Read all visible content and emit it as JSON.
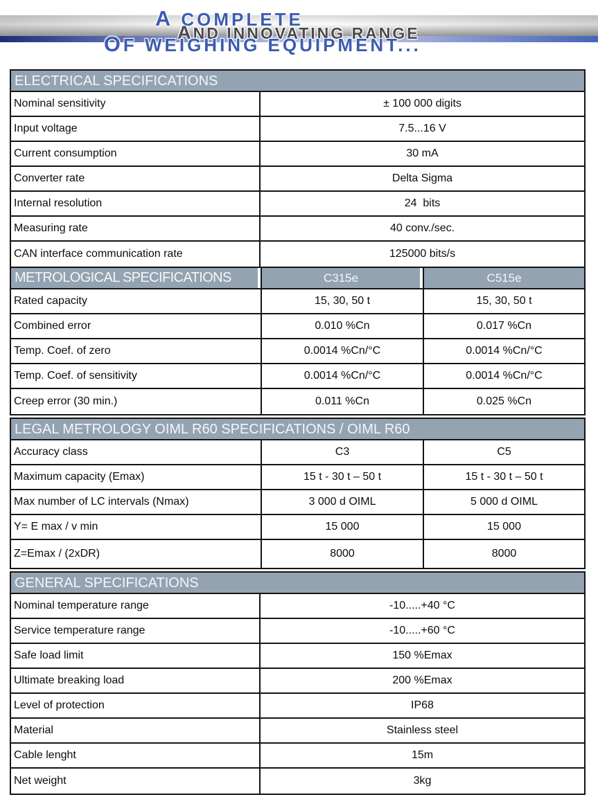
{
  "masthead": {
    "line1": "A COMPLETE",
    "line2": "AND INNOVATING RANGE",
    "line3": "OF WEIGHING EQUIPMENT..."
  },
  "colors": {
    "section_header_bg": "#94a3b2",
    "border": "#141414",
    "blue_text": "#3d5caf",
    "gray_text": "#4a4a4a"
  },
  "sections": {
    "electrical": {
      "title": "ELECTRICAL SPECIFICATIONS",
      "rows": [
        {
          "label": "Nominal sensitivity",
          "value": "± 100 000 digits"
        },
        {
          "label": "Input voltage",
          "value": "7.5...16 V"
        },
        {
          "label": "Current consumption",
          "value": "30 mA"
        },
        {
          "label": "Converter rate",
          "value": "Delta Sigma"
        },
        {
          "label": "Internal resolution",
          "value": "24  bits"
        },
        {
          "label": "Measuring rate",
          "value": "40 conv./sec."
        },
        {
          "label": "CAN interface communication rate",
          "value": "125000 bits/s"
        }
      ]
    },
    "metrological": {
      "title": "METROLOGICAL SPECIFICATIONS",
      "col_headers": [
        "C315e",
        "C515e"
      ],
      "rows": [
        {
          "label": "Rated capacity",
          "c315e": "15, 30, 50 t",
          "c515e": "15, 30, 50 t"
        },
        {
          "label": "Combined error",
          "c315e": "0.010 %Cn",
          "c515e": "0.017 %Cn"
        },
        {
          "label": "Temp. Coef. of zero",
          "c315e": "0.0014 %Cn/°C",
          "c515e": "0.0014 %Cn/°C"
        },
        {
          "label": "Temp. Coef. of sensitivity",
          "c315e": "0.0014 %Cn/°C",
          "c515e": "0.0014 %Cn/°C"
        },
        {
          "label": "Creep error (30 min.)",
          "c315e": "0.011 %Cn",
          "c515e": "0.025 %Cn"
        }
      ]
    },
    "legal": {
      "title": "LEGAL METROLOGY OIML R60 SPECIFICATIONS / OIML R60",
      "rows": [
        {
          "label": "Accuracy class",
          "c315e": "C3",
          "c515e": "C5"
        },
        {
          "label": "Maximum capacity (Emax)",
          "c315e": "15 t - 30 t – 50 t",
          "c515e": "15 t - 30 t – 50 t"
        },
        {
          "label": "Max number of LC intervals (Nmax)",
          "c315e": "3 000 d OIML",
          "c515e": "5 000 d OIML"
        },
        {
          "label": "Y= E max / v min",
          "c315e": "15 000",
          "c515e": "15 000"
        },
        {
          "label": "Z=Emax / (2xDR)",
          "c315e": "8000",
          "c515e": "8000"
        }
      ]
    },
    "general": {
      "title": "GENERAL SPECIFICATIONS",
      "rows": [
        {
          "label": "Nominal temperature range",
          "value": "-10.....+40 °C"
        },
        {
          "label": "Service temperature range",
          "value": "-10.....+60 °C"
        },
        {
          "label": "Safe load limit",
          "value": "150 %Emax"
        },
        {
          "label": "Ultimate breaking load",
          "value": "200 %Emax"
        },
        {
          "label": "Level of protection",
          "value": "IP68"
        },
        {
          "label": "Material",
          "value": "Stainless steel"
        },
        {
          "label": "Cable lenght",
          "value": "15m"
        },
        {
          "label": "Net weight",
          "value": "3kg"
        }
      ]
    }
  }
}
